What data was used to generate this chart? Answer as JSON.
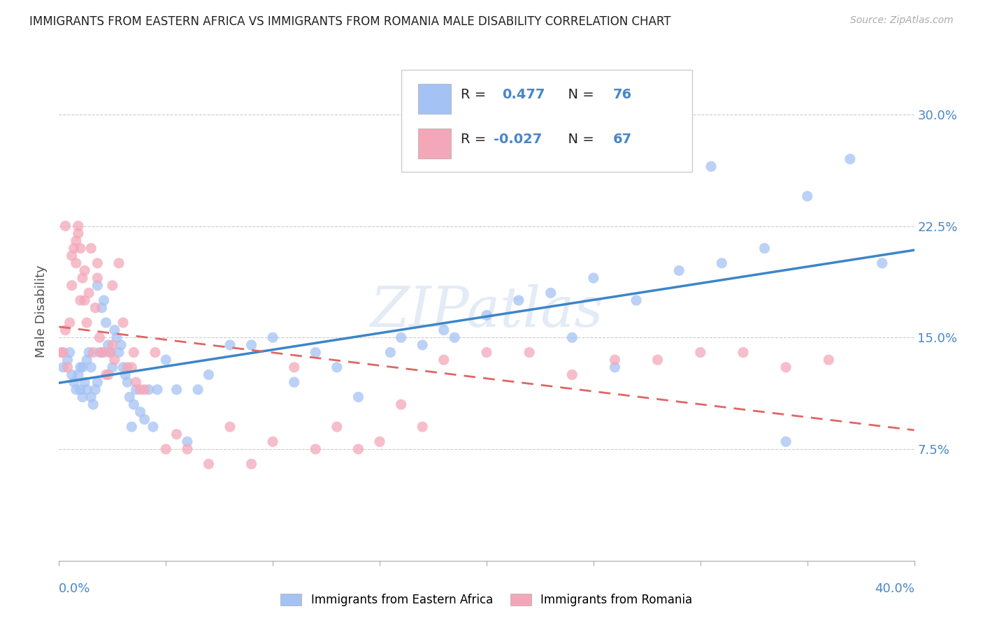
{
  "title": "IMMIGRANTS FROM EASTERN AFRICA VS IMMIGRANTS FROM ROMANIA MALE DISABILITY CORRELATION CHART",
  "source": "Source: ZipAtlas.com",
  "ylabel": "Male Disability",
  "yticks": [
    "7.5%",
    "15.0%",
    "22.5%",
    "30.0%"
  ],
  "ytick_values": [
    0.075,
    0.15,
    0.225,
    0.3
  ],
  "xrange": [
    0.0,
    0.4
  ],
  "yrange": [
    0.0,
    0.335
  ],
  "legend1_label": "Immigrants from Eastern Africa",
  "legend2_label": "Immigrants from Romania",
  "r1": "0.477",
  "n1": "76",
  "r2": "-0.027",
  "n2": "67",
  "color_blue": "#a4c2f4",
  "color_pink": "#f4a7b9",
  "color_line_blue": "#3d85c8",
  "color_line_pink": "#e06666",
  "watermark": "ZIPatlas",
  "eastern_africa_x": [
    0.002,
    0.004,
    0.005,
    0.006,
    0.007,
    0.008,
    0.009,
    0.01,
    0.01,
    0.011,
    0.011,
    0.012,
    0.013,
    0.013,
    0.014,
    0.015,
    0.015,
    0.016,
    0.017,
    0.018,
    0.018,
    0.019,
    0.02,
    0.021,
    0.022,
    0.023,
    0.024,
    0.025,
    0.026,
    0.027,
    0.028,
    0.029,
    0.03,
    0.031,
    0.032,
    0.033,
    0.034,
    0.035,
    0.036,
    0.038,
    0.04,
    0.042,
    0.044,
    0.046,
    0.05,
    0.055,
    0.06,
    0.065,
    0.07,
    0.08,
    0.09,
    0.1,
    0.11,
    0.12,
    0.13,
    0.14,
    0.155,
    0.17,
    0.185,
    0.2,
    0.215,
    0.23,
    0.25,
    0.27,
    0.29,
    0.31,
    0.33,
    0.35,
    0.37,
    0.385,
    0.305,
    0.16,
    0.18,
    0.24,
    0.26,
    0.34
  ],
  "eastern_africa_y": [
    0.13,
    0.135,
    0.14,
    0.125,
    0.12,
    0.115,
    0.125,
    0.115,
    0.13,
    0.11,
    0.13,
    0.12,
    0.135,
    0.115,
    0.14,
    0.13,
    0.11,
    0.105,
    0.115,
    0.12,
    0.185,
    0.14,
    0.17,
    0.175,
    0.16,
    0.145,
    0.14,
    0.13,
    0.155,
    0.15,
    0.14,
    0.145,
    0.13,
    0.125,
    0.12,
    0.11,
    0.09,
    0.105,
    0.115,
    0.1,
    0.095,
    0.115,
    0.09,
    0.115,
    0.135,
    0.115,
    0.08,
    0.115,
    0.125,
    0.145,
    0.145,
    0.15,
    0.12,
    0.14,
    0.13,
    0.11,
    0.14,
    0.145,
    0.15,
    0.165,
    0.175,
    0.18,
    0.19,
    0.175,
    0.195,
    0.2,
    0.21,
    0.245,
    0.27,
    0.2,
    0.265,
    0.15,
    0.155,
    0.15,
    0.13,
    0.08
  ],
  "romania_x": [
    0.001,
    0.002,
    0.003,
    0.004,
    0.005,
    0.006,
    0.007,
    0.008,
    0.008,
    0.009,
    0.01,
    0.01,
    0.011,
    0.012,
    0.013,
    0.014,
    0.015,
    0.016,
    0.017,
    0.018,
    0.019,
    0.02,
    0.021,
    0.022,
    0.023,
    0.024,
    0.025,
    0.026,
    0.028,
    0.03,
    0.032,
    0.034,
    0.036,
    0.038,
    0.04,
    0.045,
    0.05,
    0.055,
    0.06,
    0.07,
    0.08,
    0.09,
    0.1,
    0.11,
    0.12,
    0.14,
    0.16,
    0.18,
    0.2,
    0.22,
    0.24,
    0.26,
    0.28,
    0.3,
    0.32,
    0.34,
    0.36,
    0.003,
    0.006,
    0.009,
    0.012,
    0.018,
    0.025,
    0.035,
    0.13,
    0.15,
    0.17
  ],
  "romania_y": [
    0.14,
    0.14,
    0.155,
    0.13,
    0.16,
    0.185,
    0.21,
    0.215,
    0.2,
    0.22,
    0.21,
    0.175,
    0.19,
    0.175,
    0.16,
    0.18,
    0.21,
    0.14,
    0.17,
    0.19,
    0.15,
    0.14,
    0.14,
    0.125,
    0.125,
    0.14,
    0.145,
    0.135,
    0.2,
    0.16,
    0.13,
    0.13,
    0.12,
    0.115,
    0.115,
    0.14,
    0.075,
    0.085,
    0.075,
    0.065,
    0.09,
    0.065,
    0.08,
    0.13,
    0.075,
    0.075,
    0.105,
    0.135,
    0.14,
    0.14,
    0.125,
    0.135,
    0.135,
    0.14,
    0.14,
    0.13,
    0.135,
    0.225,
    0.205,
    0.225,
    0.195,
    0.2,
    0.185,
    0.14,
    0.09,
    0.08,
    0.09
  ]
}
